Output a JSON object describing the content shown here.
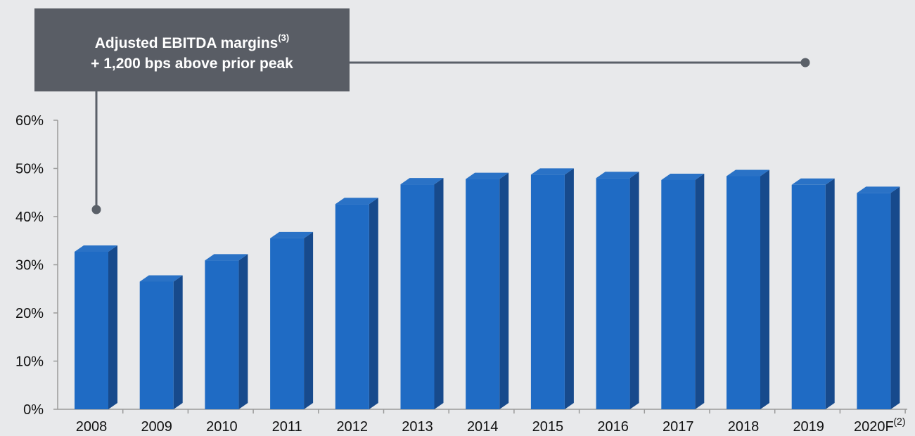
{
  "callout": {
    "line1": "Adjusted EBITDA margins",
    "line1_sup": "(3)",
    "line2": "+ 1,200 bps above prior peak"
  },
  "colors": {
    "background": "#e8e9eb",
    "bar_front": "#1f6bc4",
    "bar_side": "#174a8c",
    "bar_top": "#2a72c6",
    "callout_bg": "#595d65",
    "axis": "#9a9a9a",
    "connector": "#5a6068"
  },
  "chart_data": {
    "type": "bar",
    "style": "3d-column",
    "categories": [
      "2008",
      "2009",
      "2010",
      "2011",
      "2012",
      "2013",
      "2014",
      "2015",
      "2016",
      "2017",
      "2018",
      "2019",
      "2020F"
    ],
    "category_superscripts": {
      "2020F": "(2)"
    },
    "values": [
      32.7,
      26.5,
      30.9,
      35.5,
      42.6,
      46.7,
      47.8,
      48.7,
      48.0,
      47.6,
      48.4,
      46.6,
      44.9
    ],
    "unit": "%",
    "ylim": [
      0,
      60
    ],
    "yticks": [
      "0%",
      "10%",
      "20%",
      "30%",
      "40%",
      "50%",
      "60%"
    ],
    "ytick_values": [
      0,
      10,
      20,
      30,
      40,
      50,
      60
    ],
    "grid": false,
    "legend": "none",
    "title": "",
    "xlabel": "",
    "ylabel": ""
  }
}
